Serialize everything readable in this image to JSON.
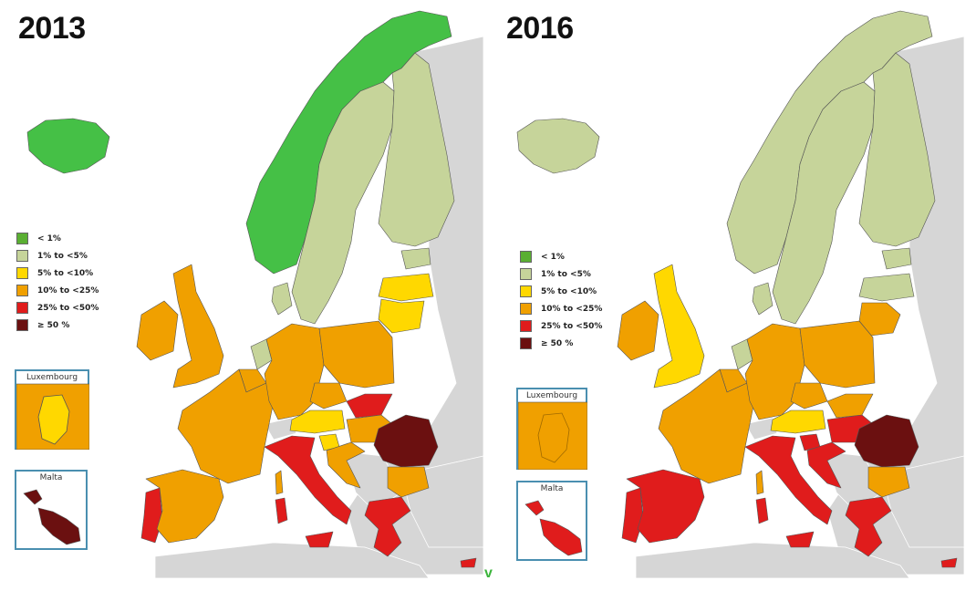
{
  "maps": [
    {
      "title": "2013",
      "legend": [
        {
          "label": "< 1%",
          "color": "#5aaf32"
        },
        {
          "label": "1% to <5%",
          "color": "#c6d49a"
        },
        {
          "label": "5% to <10%",
          "color": "#ffd800"
        },
        {
          "label": "10% to <25%",
          "color": "#f0a000"
        },
        {
          "label": "25% to <50%",
          "color": "#e01c1c"
        },
        {
          "label": "≥ 50 %",
          "color": "#6b1010"
        }
      ],
      "insets": [
        {
          "title": "Luxembourg",
          "fill_color": "#f0a000",
          "inner_color": "#ffd800"
        },
        {
          "title": "Malta",
          "fill_color": "#6b1010"
        }
      ],
      "countries": {
        "iceland": "#45c046",
        "norway": "#45c046",
        "sweden": "#c6d49a",
        "finland": "#c6d49a",
        "estonia": "#c6d49a",
        "latvia": "#ffd800",
        "lithuania": "#ffd800",
        "ireland": "#f0a000",
        "uk": "#f0a000",
        "netherlands": "#c6d49a",
        "belgium": "#f0a000",
        "france": "#f0a000",
        "germany": "#f0a000",
        "poland": "#f0a000",
        "czechia": "#f0a000",
        "slovakia": "#e01c1c",
        "austria": "#ffd800",
        "hungary": "#f0a000",
        "slovenia": "#ffd800",
        "croatia": "#f0a000",
        "romania": "#6b1010",
        "bulgaria": "#f0a000",
        "portugal": "#e01c1c",
        "spain": "#f0a000",
        "italy": "#e01c1c",
        "sardinia": "#e01c1c",
        "sicily": "#e01c1c",
        "greece": "#e01c1c",
        "cyprus": "#e01c1c",
        "corsica": "#f0a000",
        "denmark": "#c6d49a"
      }
    },
    {
      "title": "2016",
      "legend": [
        {
          "label": "< 1%",
          "color": "#5aaf32"
        },
        {
          "label": "1% to <5%",
          "color": "#c6d49a"
        },
        {
          "label": "5% to <10%",
          "color": "#ffd800"
        },
        {
          "label": "10% to <25%",
          "color": "#f0a000"
        },
        {
          "label": "25% to <50%",
          "color": "#e01c1c"
        },
        {
          "label": "≥ 50 %",
          "color": "#6b1010"
        }
      ],
      "insets": [
        {
          "title": "Luxembourg",
          "fill_color": "#f0a000",
          "inner_color": "#f0a000"
        },
        {
          "title": "Malta",
          "fill_color": "#e01c1c"
        }
      ],
      "countries": {
        "iceland": "#c6d49a",
        "norway": "#c6d49a",
        "sweden": "#c6d49a",
        "finland": "#c6d49a",
        "estonia": "#c6d49a",
        "latvia": "#c6d49a",
        "lithuania": "#f0a000",
        "ireland": "#f0a000",
        "uk": "#ffd800",
        "netherlands": "#c6d49a",
        "belgium": "#f0a000",
        "france": "#f0a000",
        "germany": "#f0a000",
        "poland": "#f0a000",
        "czechia": "#f0a000",
        "slovakia": "#f0a000",
        "austria": "#ffd800",
        "hungary": "#e01c1c",
        "slovenia": "#e01c1c",
        "croatia": "#e01c1c",
        "romania": "#6b1010",
        "bulgaria": "#f0a000",
        "portugal": "#e01c1c",
        "spain": "#e01c1c",
        "italy": "#e01c1c",
        "sardinia": "#e01c1c",
        "sicily": "#e01c1c",
        "greece": "#e01c1c",
        "cyprus": "#e01c1c",
        "corsica": "#f0a000",
        "denmark": "#c6d49a"
      }
    }
  ],
  "background_land_color": "#d6d6d6",
  "marker_text": "v"
}
